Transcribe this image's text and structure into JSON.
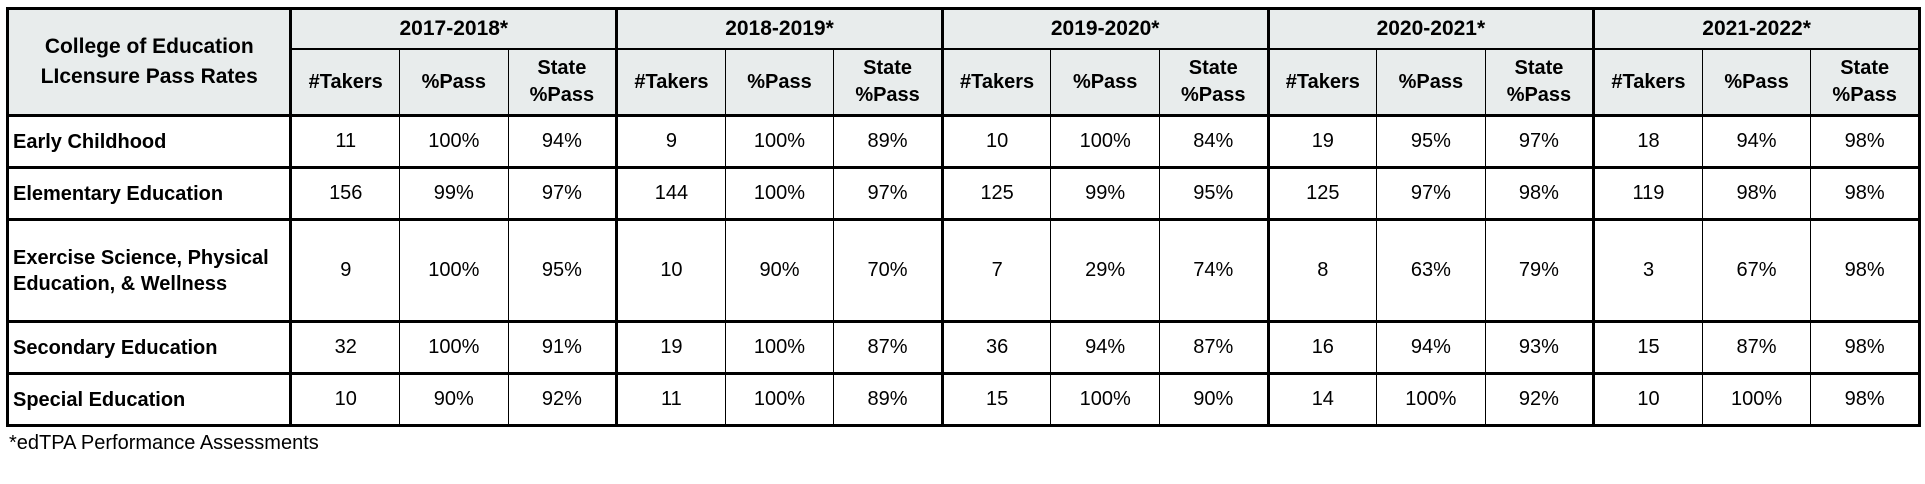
{
  "table": {
    "corner_title": "College of Education\nLIcensure Pass Rates",
    "year_groups": [
      "2017-2018*",
      "2018-2019*",
      "2019-2020*",
      "2020-2021*",
      "2021-2022*"
    ],
    "sub_headers": [
      "#Takers",
      "%Pass",
      "State\n%Pass"
    ],
    "rows": [
      {
        "label": "Early Childhood",
        "values": [
          [
            "11",
            "100%",
            "94%"
          ],
          [
            "9",
            "100%",
            "89%"
          ],
          [
            "10",
            "100%",
            "84%"
          ],
          [
            "19",
            "95%",
            "97%"
          ],
          [
            "18",
            "94%",
            "98%"
          ]
        ]
      },
      {
        "label": "Elementary Education",
        "values": [
          [
            "156",
            "99%",
            "97%"
          ],
          [
            "144",
            "100%",
            "97%"
          ],
          [
            "125",
            "99%",
            "95%"
          ],
          [
            "125",
            "97%",
            "98%"
          ],
          [
            "119",
            "98%",
            "98%"
          ]
        ]
      },
      {
        "label": "Exercise Science, Physical Education, & Wellness",
        "values": [
          [
            "9",
            "100%",
            "95%"
          ],
          [
            "10",
            "90%",
            "70%"
          ],
          [
            "7",
            "29%",
            "74%"
          ],
          [
            "8",
            "63%",
            "79%"
          ],
          [
            "3",
            "67%",
            "98%"
          ]
        ]
      },
      {
        "label": "Secondary Education",
        "values": [
          [
            "32",
            "100%",
            "91%"
          ],
          [
            "19",
            "100%",
            "87%"
          ],
          [
            "36",
            "94%",
            "87%"
          ],
          [
            "16",
            "94%",
            "93%"
          ],
          [
            "15",
            "87%",
            "98%"
          ]
        ]
      },
      {
        "label": "Special Education",
        "values": [
          [
            "10",
            "90%",
            "92%"
          ],
          [
            "11",
            "100%",
            "89%"
          ],
          [
            "15",
            "100%",
            "90%"
          ],
          [
            "14",
            "100%",
            "92%"
          ],
          [
            "10",
            "100%",
            "98%"
          ]
        ]
      }
    ],
    "footnote": "*edTPA Performance Assessments"
  },
  "colors": {
    "header_bg": "#e8ecec",
    "border": "#000000",
    "text": "#000000"
  }
}
